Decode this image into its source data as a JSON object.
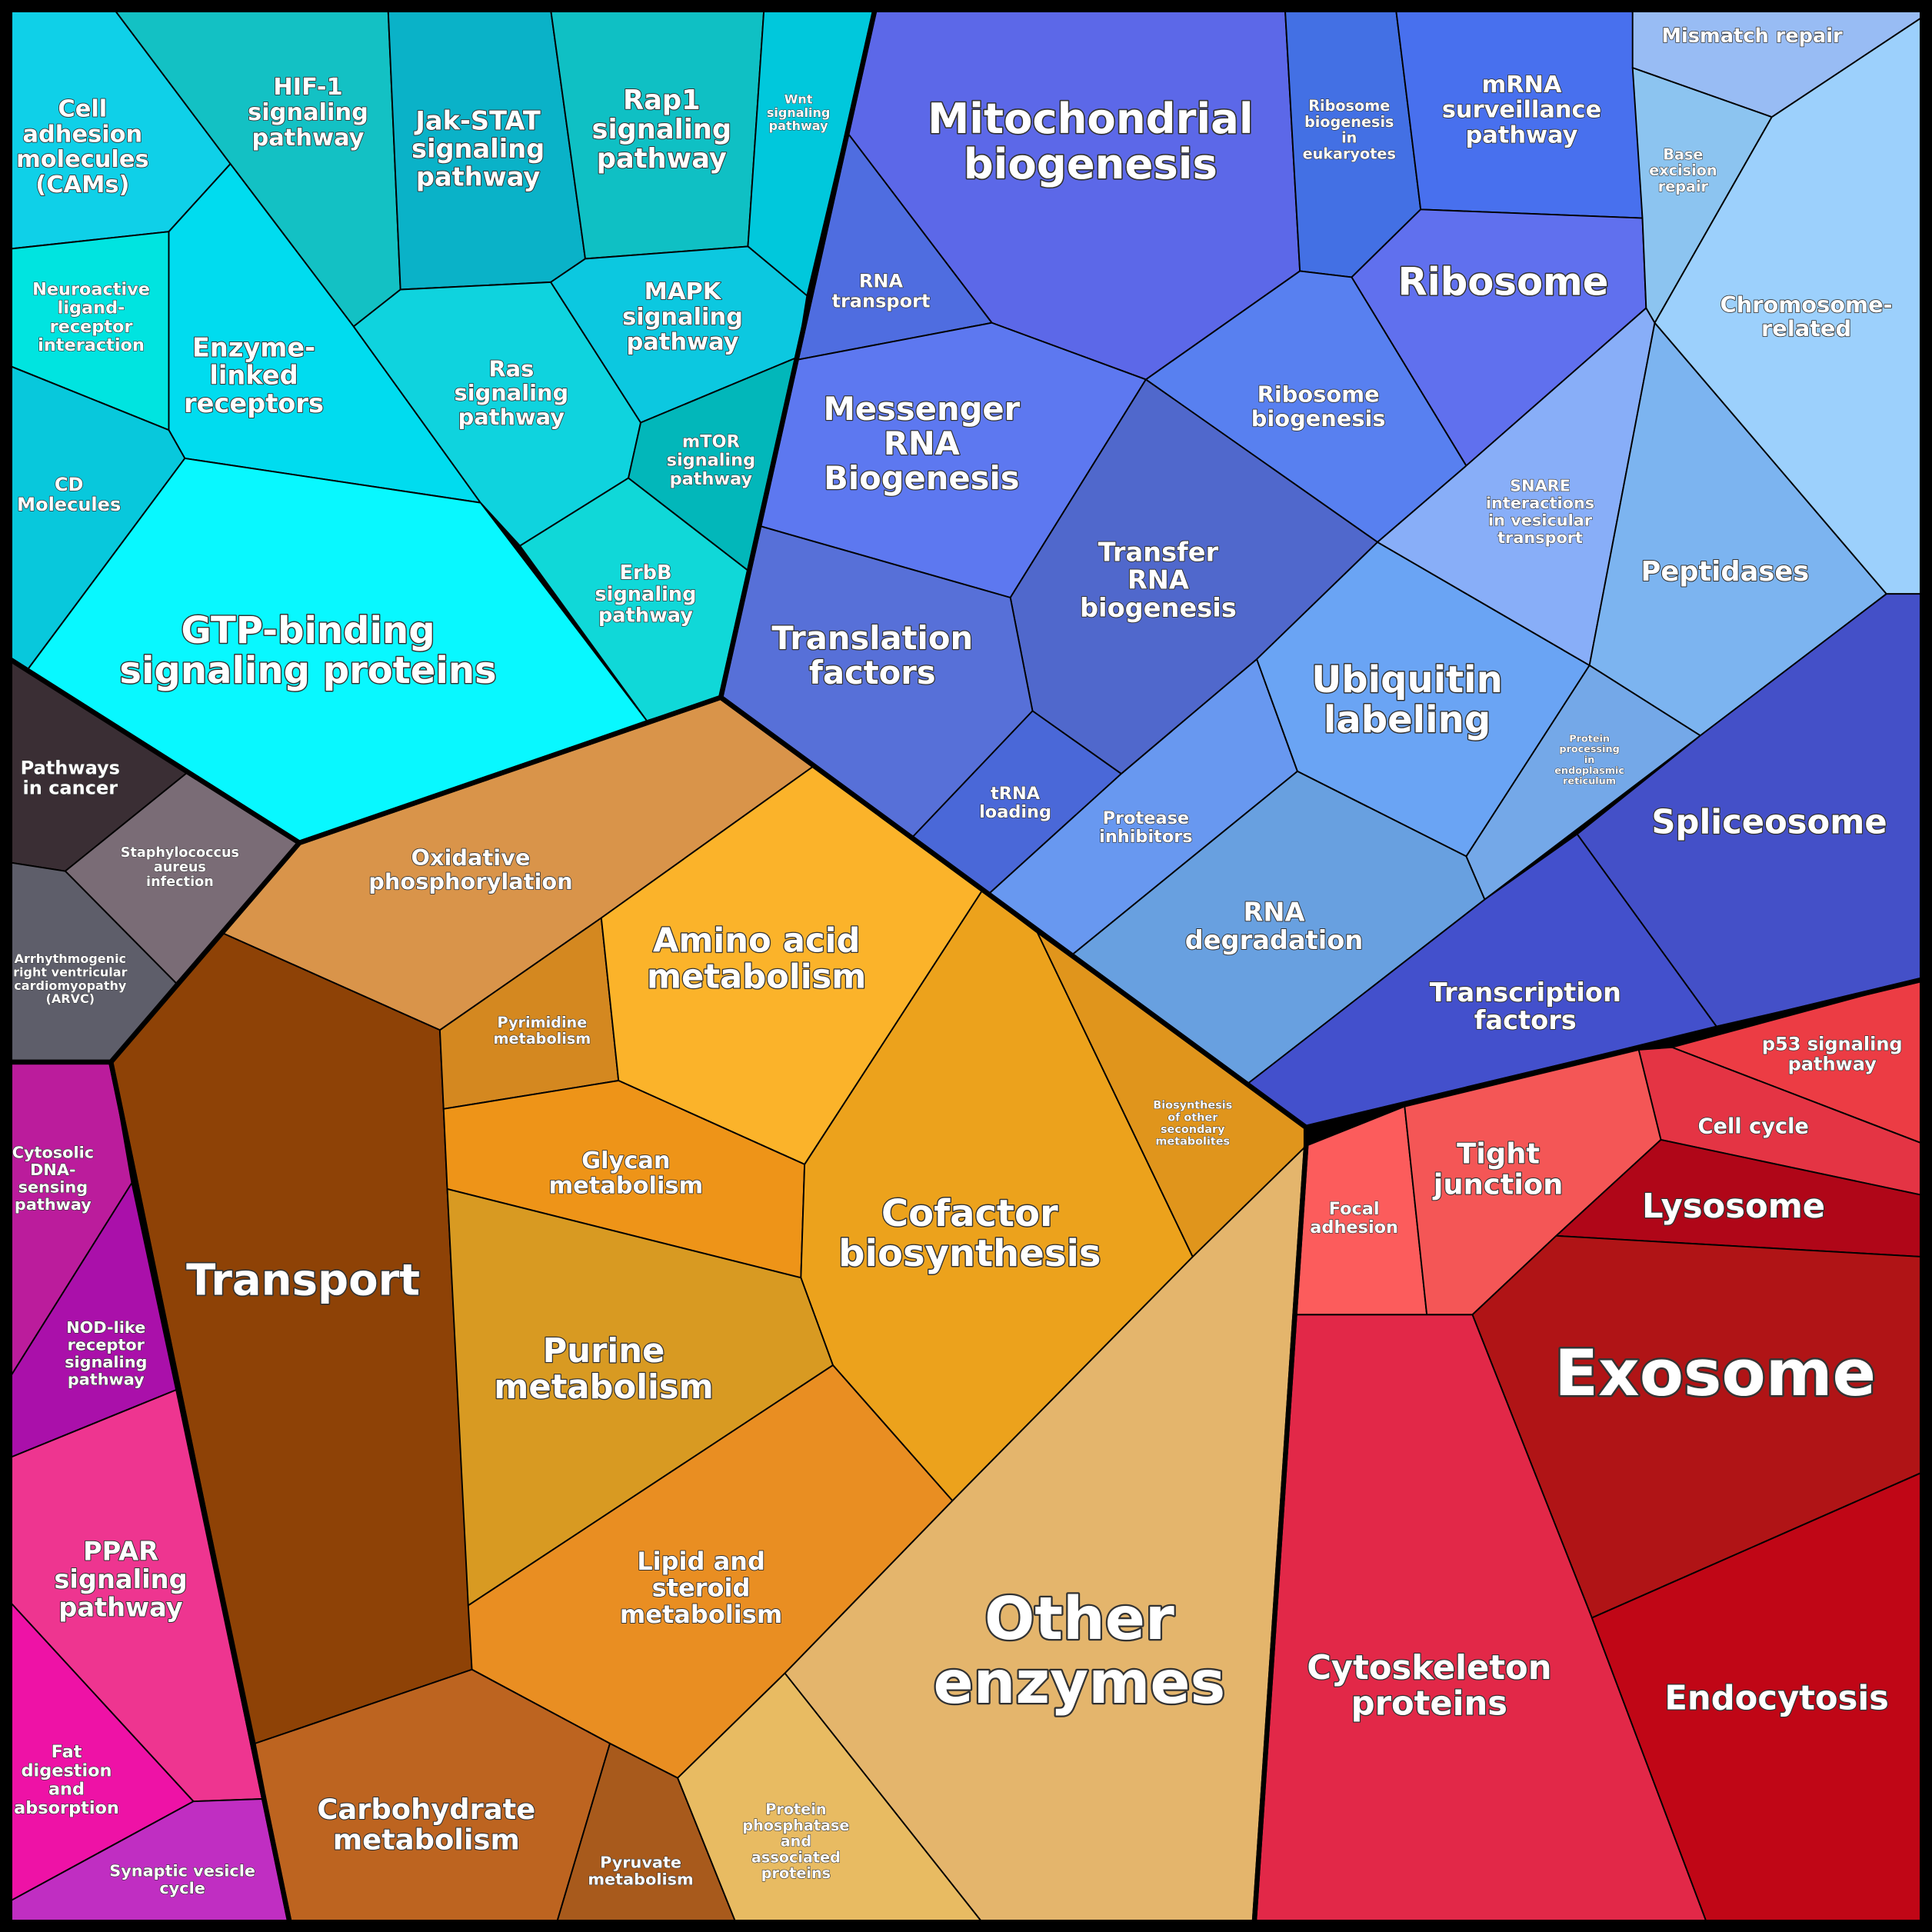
{
  "cells": [
    {
      "lines": [
        "Cell",
        "adhesion",
        "molecules",
        "(CAMs)"
      ]
    },
    {
      "lines": [
        "HIF-1",
        "signaling",
        "pathway"
      ]
    },
    {
      "lines": [
        "Jak-STAT",
        "signaling",
        "pathway"
      ]
    },
    {
      "lines": [
        "Rap1",
        "signaling",
        "pathway"
      ]
    },
    {
      "lines": [
        "Wnt",
        "signaling",
        "pathway"
      ]
    },
    {
      "lines": [
        "Neuroactive",
        "ligand-",
        "receptor",
        "interaction"
      ]
    },
    {
      "lines": [
        "Enzyme-",
        "linked",
        "receptors"
      ]
    },
    {
      "lines": [
        "CD",
        "Molecules"
      ]
    },
    {
      "lines": [
        "GTP-binding",
        "signaling proteins"
      ]
    },
    {
      "lines": [
        "Ras",
        "signaling",
        "pathway"
      ]
    },
    {
      "lines": [
        "MAPK",
        "signaling",
        "pathway"
      ]
    },
    {
      "lines": [
        "mTOR",
        "signaling",
        "pathway"
      ]
    },
    {
      "lines": [
        "ErbB",
        "signaling",
        "pathway"
      ]
    },
    {
      "lines": [
        "Mitochondrial",
        "biogenesis"
      ]
    },
    {
      "lines": [
        "RNA",
        "transport"
      ]
    },
    {
      "lines": [
        "Ribosome",
        "biogenesis",
        "in",
        "eukaryotes"
      ]
    },
    {
      "lines": [
        "mRNA",
        "surveillance",
        "pathway"
      ]
    },
    {
      "lines": [
        "Ribosome"
      ]
    },
    {
      "lines": [
        "Messenger",
        "RNA",
        "Biogenesis"
      ]
    },
    {
      "lines": [
        "Ribosome",
        "biogenesis"
      ]
    },
    {
      "lines": [
        "Transfer",
        "RNA",
        "biogenesis"
      ]
    },
    {
      "lines": [
        "Translation",
        "factors"
      ]
    },
    {
      "lines": [
        "tRNA",
        "loading"
      ]
    },
    {
      "lines": [
        "Protease",
        "inhibitors"
      ]
    },
    {
      "lines": [
        "Ubiquitin",
        "labeling"
      ]
    },
    {
      "lines": [
        "RNA",
        "degradation"
      ]
    },
    {
      "lines": [
        "SNARE",
        "interactions",
        "in vesicular",
        "transport"
      ]
    },
    {
      "lines": [
        "Peptidases"
      ]
    },
    {
      "lines": [
        "Protein",
        "processing",
        "in",
        "endoplasmic",
        "reticulum"
      ]
    },
    {
      "lines": [
        "Mismatch repair"
      ]
    },
    {
      "lines": [
        "Base",
        "excision",
        "repair"
      ]
    },
    {
      "lines": [
        "Chromosome-",
        "related"
      ]
    },
    {
      "lines": [
        "Spliceosome"
      ]
    },
    {
      "lines": [
        "Transcription",
        "factors"
      ]
    },
    {
      "lines": [
        "Pathways",
        "in cancer"
      ]
    },
    {
      "lines": [
        "Staphylococcus",
        "aureus",
        "infection"
      ]
    },
    {
      "lines": [
        "Arrhythmogenic",
        "right ventricular",
        "cardiomyopathy",
        "(ARVC)"
      ]
    },
    {
      "lines": [
        "Oxidative",
        "phosphorylation"
      ]
    },
    {
      "lines": [
        "Transport"
      ]
    },
    {
      "lines": [
        "Pyrimidine",
        "metabolism"
      ]
    },
    {
      "lines": [
        "Amino acid",
        "metabolism"
      ]
    },
    {
      "lines": [
        "Glycan",
        "metabolism"
      ]
    },
    {
      "lines": [
        "Cofactor",
        "biosynthesis"
      ]
    },
    {
      "lines": [
        "Biosynthesis",
        "of other",
        "secondary",
        "metabolites"
      ]
    },
    {
      "lines": [
        "Purine",
        "metabolism"
      ]
    },
    {
      "lines": [
        "Lipid and",
        "steroid",
        "metabolism"
      ]
    },
    {
      "lines": [
        "Other",
        "enzymes"
      ]
    },
    {
      "lines": [
        "Carbohydrate",
        "metabolism"
      ]
    },
    {
      "lines": [
        "Pyruvate",
        "metabolism"
      ]
    },
    {
      "lines": [
        "Protein",
        "phosphatase",
        "and",
        "associated",
        "proteins"
      ]
    },
    {
      "lines": [
        "Cytosolic",
        "DNA-",
        "sensing",
        "pathway"
      ]
    },
    {
      "lines": [
        "NOD-like",
        "receptor",
        "signaling",
        "pathway"
      ]
    },
    {
      "lines": [
        "PPAR",
        "signaling",
        "pathway"
      ]
    },
    {
      "lines": [
        "Fat",
        "digestion",
        "and",
        "absorption"
      ]
    },
    {
      "lines": [
        "Synaptic vesicle",
        "cycle"
      ]
    },
    {
      "lines": [
        "Focal",
        "adhesion"
      ]
    },
    {
      "lines": [
        "Tight",
        "junction"
      ]
    },
    {
      "lines": [
        "p53 signaling",
        "pathway"
      ]
    },
    {
      "lines": [
        "Cell cycle"
      ]
    },
    {
      "lines": [
        "Lysosome"
      ]
    },
    {
      "lines": [
        "Exosome"
      ]
    },
    {
      "lines": [
        "Cytoskeleton",
        "proteins"
      ]
    },
    {
      "lines": [
        "Endocytosis"
      ]
    }
  ]
}
